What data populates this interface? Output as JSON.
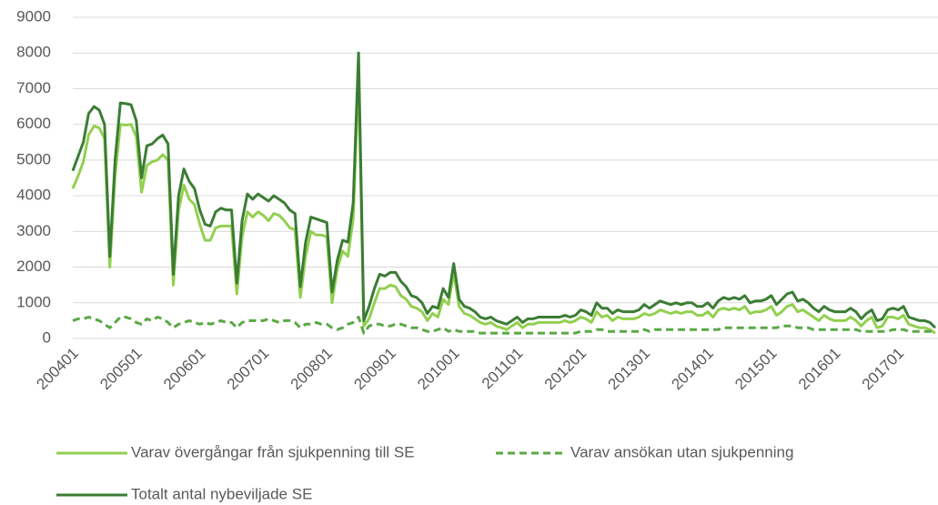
{
  "chart_data": {
    "type": "line",
    "categories": [
      "200401",
      null,
      null,
      null,
      null,
      null,
      null,
      null,
      null,
      null,
      null,
      null,
      "200501",
      null,
      null,
      null,
      null,
      null,
      null,
      null,
      null,
      null,
      null,
      null,
      "200601",
      null,
      null,
      null,
      null,
      null,
      null,
      null,
      null,
      null,
      null,
      null,
      "200701",
      null,
      null,
      null,
      null,
      null,
      null,
      null,
      null,
      null,
      null,
      null,
      "200801",
      null,
      null,
      null,
      null,
      null,
      null,
      null,
      null,
      null,
      null,
      null,
      "200901",
      null,
      null,
      null,
      null,
      null,
      null,
      null,
      null,
      null,
      null,
      null,
      "201001",
      null,
      null,
      null,
      null,
      null,
      null,
      null,
      null,
      null,
      null,
      null,
      "201101",
      null,
      null,
      null,
      null,
      null,
      null,
      null,
      null,
      null,
      null,
      null,
      "201201",
      null,
      null,
      null,
      null,
      null,
      null,
      null,
      null,
      null,
      null,
      null,
      "201301",
      null,
      null,
      null,
      null,
      null,
      null,
      null,
      null,
      null,
      null,
      null,
      "201401",
      null,
      null,
      null,
      null,
      null,
      null,
      null,
      null,
      null,
      null,
      null,
      "201501",
      null,
      null,
      null,
      null,
      null,
      null,
      null,
      null,
      null,
      null,
      null,
      "201601",
      null,
      null,
      null,
      null,
      null,
      null,
      null,
      null,
      null,
      null,
      null,
      "201701",
      null,
      null,
      null,
      null,
      null,
      null,
      null
    ],
    "series": [
      {
        "name": "Varav övergångar från sjukpenning till SE",
        "color": "#92d050",
        "dash": false,
        "values": [
          4200,
          4550,
          4950,
          5700,
          5950,
          5900,
          5600,
          2000,
          4550,
          6000,
          5980,
          6000,
          5650,
          4100,
          4850,
          4950,
          5000,
          5150,
          5000,
          1500,
          3600,
          4300,
          3900,
          3750,
          3200,
          2750,
          2750,
          3100,
          3150,
          3150,
          3150,
          1250,
          2850,
          3550,
          3400,
          3550,
          3450,
          3300,
          3500,
          3450,
          3300,
          3100,
          3050,
          1150,
          2300,
          3000,
          2900,
          2900,
          2850,
          1000,
          1950,
          2450,
          2300,
          3350,
          7400,
          350,
          550,
          1000,
          1400,
          1400,
          1500,
          1450,
          1200,
          1100,
          900,
          850,
          750,
          500,
          700,
          600,
          1100,
          950,
          1850,
          900,
          700,
          650,
          550,
          450,
          400,
          450,
          350,
          300,
          250,
          350,
          450,
          300,
          400,
          400,
          450,
          450,
          450,
          450,
          450,
          500,
          450,
          500,
          600,
          550,
          450,
          750,
          600,
          650,
          500,
          600,
          550,
          550,
          550,
          600,
          700,
          650,
          700,
          800,
          750,
          700,
          750,
          700,
          750,
          750,
          650,
          650,
          750,
          600,
          800,
          850,
          800,
          850,
          800,
          900,
          700,
          750,
          750,
          800,
          900,
          650,
          750,
          900,
          950,
          750,
          800,
          700,
          600,
          500,
          650,
          550,
          500,
          500,
          500,
          600,
          500,
          350,
          500,
          600,
          300,
          350,
          600,
          600,
          550,
          650,
          400,
          350,
          300,
          300,
          250,
          150
        ]
      },
      {
        "name": "Varav ansökan utan sjukpenning",
        "color": "#5aa846",
        "dash": true,
        "values": [
          500,
          550,
          550,
          600,
          550,
          500,
          400,
          300,
          450,
          600,
          600,
          550,
          450,
          400,
          550,
          500,
          600,
          550,
          450,
          300,
          400,
          450,
          500,
          450,
          400,
          450,
          400,
          450,
          500,
          450,
          450,
          300,
          450,
          500,
          500,
          500,
          500,
          550,
          500,
          450,
          500,
          500,
          450,
          300,
          400,
          400,
          450,
          400,
          400,
          300,
          250,
          300,
          400,
          450,
          600,
          150,
          350,
          400,
          400,
          350,
          350,
          400,
          400,
          350,
          300,
          300,
          250,
          200,
          200,
          250,
          300,
          200,
          250,
          200,
          200,
          200,
          200,
          150,
          150,
          150,
          150,
          150,
          150,
          150,
          150,
          150,
          150,
          150,
          150,
          150,
          150,
          150,
          150,
          150,
          150,
          150,
          200,
          200,
          200,
          250,
          250,
          200,
          200,
          200,
          200,
          200,
          200,
          200,
          250,
          200,
          250,
          250,
          250,
          250,
          250,
          250,
          250,
          250,
          250,
          250,
          250,
          250,
          250,
          300,
          300,
          300,
          300,
          300,
          300,
          300,
          300,
          300,
          300,
          300,
          350,
          350,
          350,
          300,
          300,
          300,
          250,
          250,
          250,
          250,
          250,
          250,
          250,
          250,
          250,
          200,
          200,
          200,
          200,
          200,
          200,
          250,
          250,
          250,
          200,
          200,
          200,
          200,
          200,
          150
        ]
      },
      {
        "name": "Totalt antal nybeviljade SE",
        "color": "#3b7d34",
        "dash": false,
        "values": [
          4700,
          5100,
          5500,
          6300,
          6500,
          6400,
          6000,
          2300,
          5000,
          6600,
          6580,
          6550,
          6100,
          4500,
          5400,
          5450,
          5600,
          5700,
          5450,
          1800,
          4000,
          4750,
          4400,
          4200,
          3600,
          3200,
          3150,
          3550,
          3650,
          3600,
          3600,
          1550,
          3300,
          4050,
          3900,
          4050,
          3950,
          3850,
          4000,
          3900,
          3800,
          3600,
          3500,
          1450,
          2700,
          3400,
          3350,
          3300,
          3250,
          1300,
          2200,
          2750,
          2700,
          3800,
          8000,
          500,
          900,
          1400,
          1800,
          1750,
          1850,
          1850,
          1600,
          1450,
          1200,
          1150,
          1000,
          700,
          900,
          850,
          1400,
          1150,
          2100,
          1100,
          900,
          850,
          750,
          600,
          550,
          600,
          500,
          450,
          400,
          500,
          600,
          450,
          550,
          550,
          600,
          600,
          600,
          600,
          600,
          650,
          600,
          650,
          800,
          750,
          650,
          1000,
          850,
          850,
          700,
          800,
          750,
          750,
          750,
          800,
          950,
          850,
          950,
          1050,
          1000,
          950,
          1000,
          950,
          1000,
          1000,
          900,
          900,
          1000,
          850,
          1050,
          1150,
          1100,
          1150,
          1100,
          1200,
          1000,
          1050,
          1050,
          1100,
          1200,
          950,
          1100,
          1250,
          1300,
          1050,
          1100,
          1000,
          850,
          750,
          900,
          800,
          750,
          750,
          750,
          850,
          750,
          550,
          700,
          800,
          500,
          550,
          800,
          850,
          800,
          900,
          600,
          550,
          500,
          500,
          450,
          300
        ]
      }
    ],
    "ylim": [
      0,
      9000
    ],
    "yticks": [
      0,
      1000,
      2000,
      3000,
      4000,
      5000,
      6000,
      7000,
      8000,
      9000
    ],
    "grid": true
  }
}
